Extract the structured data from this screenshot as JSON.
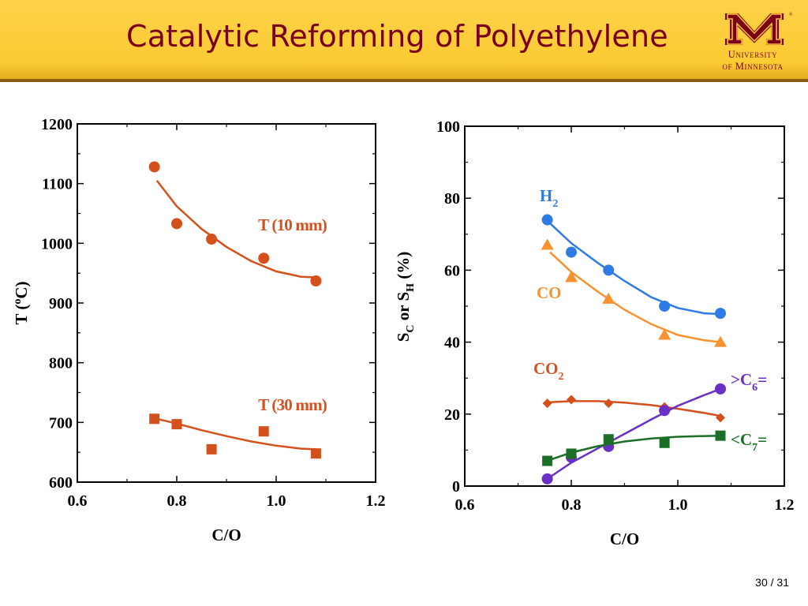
{
  "slide": {
    "title": "Catalytic Reforming of Polyethylene",
    "logo_line1": "University",
    "logo_line2": "of Minnesota",
    "page_number": "30 / 31"
  },
  "colors": {
    "header_bg": "#fcca36",
    "title": "#7a0019",
    "temperature": "#d4501c",
    "H2": "#2f7be6",
    "CO": "#f7922e",
    "CO2": "#d4501c",
    "C6": "#6a2fc4",
    "C7": "#1b6e26"
  },
  "chart_data": [
    {
      "type": "scatter",
      "xlabel": "C/O",
      "ylabel": "T (°C)",
      "ylabel_parts": [
        "T (",
        "o",
        "C)"
      ],
      "xlim": [
        0.6,
        1.2
      ],
      "ylim": [
        600,
        1200
      ],
      "xticks": [
        "0.6",
        "0.8",
        "1.0",
        "1.2"
      ],
      "yticks": [
        "600",
        "700",
        "800",
        "900",
        "1000",
        "1100",
        "1200"
      ],
      "series": [
        {
          "name": "T (10 mm)",
          "marker": "circle",
          "color": "#d4501c",
          "x": [
            0.755,
            0.8,
            0.87,
            0.975,
            1.08
          ],
          "y": [
            1128,
            1033,
            1007,
            975,
            937
          ],
          "fit": [
            [
              0.76,
              1105
            ],
            [
              0.8,
              1062
            ],
            [
              0.85,
              1024
            ],
            [
              0.9,
              994
            ],
            [
              0.95,
              970
            ],
            [
              1.0,
              953
            ],
            [
              1.05,
              944
            ],
            [
              1.08,
              943
            ]
          ]
        },
        {
          "name": "T (30 mm)",
          "marker": "square",
          "color": "#d4501c",
          "x": [
            0.755,
            0.8,
            0.87,
            0.975,
            1.08
          ],
          "y": [
            706,
            697,
            655,
            685,
            648
          ],
          "fit": [
            [
              0.76,
              706
            ],
            [
              0.8,
              698
            ],
            [
              0.85,
              687
            ],
            [
              0.9,
              677
            ],
            [
              0.95,
              668
            ],
            [
              1.0,
              661
            ],
            [
              1.05,
              656
            ],
            [
              1.08,
              655
            ]
          ]
        }
      ]
    },
    {
      "type": "scatter",
      "xlabel": "C/O",
      "ylabel": "SC or SH (%)",
      "xlim": [
        0.6,
        1.2
      ],
      "ylim": [
        0,
        100
      ],
      "xticks": [
        "0.6",
        "0.8",
        "1.0",
        "1.2"
      ],
      "yticks": [
        "0",
        "20",
        "40",
        "60",
        "80",
        "100"
      ],
      "series": [
        {
          "name": "H2",
          "marker": "circle",
          "color": "#2f7be6",
          "x": [
            0.755,
            0.8,
            0.87,
            0.975,
            1.08
          ],
          "y": [
            74,
            65,
            60,
            50,
            48
          ],
          "fit": [
            [
              0.76,
              73
            ],
            [
              0.8,
              67.5
            ],
            [
              0.85,
              62
            ],
            [
              0.9,
              57
            ],
            [
              0.95,
              52.5
            ],
            [
              1.0,
              49.5
            ],
            [
              1.05,
              48
            ],
            [
              1.08,
              47.8
            ]
          ]
        },
        {
          "name": "CO",
          "marker": "triangle",
          "color": "#f7922e",
          "x": [
            0.755,
            0.8,
            0.87,
            0.975,
            1.08
          ],
          "y": [
            67,
            58,
            52,
            42,
            40
          ],
          "fit": [
            [
              0.76,
              65
            ],
            [
              0.8,
              59.5
            ],
            [
              0.85,
              54
            ],
            [
              0.9,
              49
            ],
            [
              0.95,
              45
            ],
            [
              1.0,
              42
            ],
            [
              1.05,
              40.5
            ],
            [
              1.08,
              40
            ]
          ]
        },
        {
          "name": "CO2",
          "marker": "diamond",
          "color": "#d4501c",
          "x": [
            0.755,
            0.8,
            0.87,
            0.975,
            1.08
          ],
          "y": [
            23,
            24,
            23,
            22,
            19
          ],
          "fit": [
            [
              0.76,
              23.3
            ],
            [
              0.8,
              23.6
            ],
            [
              0.85,
              23.6
            ],
            [
              0.9,
              23.2
            ],
            [
              0.95,
              22.5
            ],
            [
              1.0,
              21.5
            ],
            [
              1.05,
              20.3
            ],
            [
              1.08,
              19.5
            ]
          ]
        },
        {
          "name": ">C6=",
          "marker": "circle",
          "color": "#6a2fc4",
          "x": [
            0.755,
            0.8,
            0.87,
            0.975,
            1.08
          ],
          "y": [
            2,
            8,
            11,
            21,
            27
          ],
          "fit": [
            [
              0.76,
              2.5
            ],
            [
              0.8,
              6.5
            ],
            [
              0.85,
              10.5
            ],
            [
              0.9,
              14.5
            ],
            [
              0.95,
              18.5
            ],
            [
              1.0,
              22.3
            ],
            [
              1.05,
              25.3
            ],
            [
              1.08,
              27
            ]
          ]
        },
        {
          "name": "<C7=",
          "marker": "square",
          "color": "#1b6e26",
          "x": [
            0.755,
            0.8,
            0.87,
            0.975,
            1.08
          ],
          "y": [
            7,
            9,
            13,
            12,
            14
          ],
          "fit": [
            [
              0.76,
              7.3
            ],
            [
              0.8,
              9.3
            ],
            [
              0.85,
              11.1
            ],
            [
              0.9,
              12.4
            ],
            [
              0.95,
              13.2
            ],
            [
              1.0,
              13.7
            ],
            [
              1.05,
              13.9
            ],
            [
              1.08,
              14
            ]
          ]
        }
      ],
      "labels": [
        {
          "series": "H2",
          "base": "H",
          "sub": "2",
          "suffix": ""
        },
        {
          "series": "CO",
          "base": "CO",
          "sub": "",
          "suffix": ""
        },
        {
          "series": "CO2",
          "base": "CO",
          "sub": "2",
          "suffix": ""
        },
        {
          "series": ">C6=",
          "base": ">C",
          "sub": "6",
          "suffix": "="
        },
        {
          "series": "<C7=",
          "base": "<C",
          "sub": "7",
          "suffix": "="
        }
      ]
    }
  ]
}
